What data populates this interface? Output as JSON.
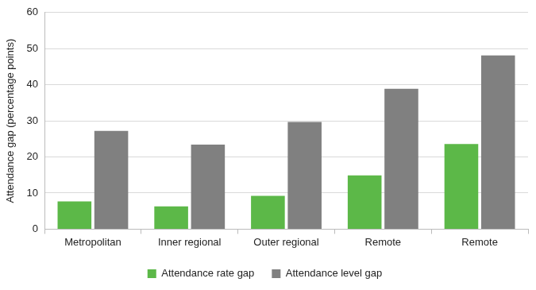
{
  "chart_data": {
    "type": "bar",
    "y_label": "Attendance gap (percentage points)",
    "categories": [
      "Metropolitan",
      "Inner regional",
      "Outer regional",
      "Remote",
      "Remote"
    ],
    "series": [
      {
        "name": "Attendance rate gap",
        "color": "#5cb848",
        "values": [
          7.7,
          6.3,
          9.2,
          14.9,
          23.6
        ]
      },
      {
        "name": "Attendance level gap",
        "color": "#808080",
        "values": [
          27.2,
          23.4,
          29.7,
          38.9,
          48.1
        ]
      }
    ],
    "ylim": [
      0,
      60
    ],
    "yticks": [
      0,
      10,
      20,
      30,
      40,
      50,
      60
    ],
    "grid": true,
    "legend": "bottom"
  }
}
